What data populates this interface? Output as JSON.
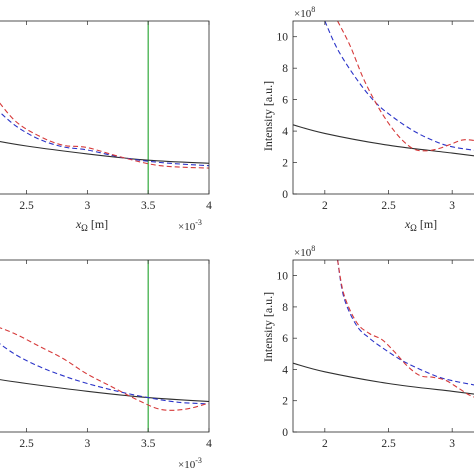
{
  "chart_data": [
    {
      "type": "line",
      "panel": "top-left",
      "xlabel": "x_Ω [m]",
      "x_scale_label": "×10",
      "x_scale_exp": "-3",
      "xlim": [
        2.2,
        4.0
      ],
      "ylim": [
        0,
        11
      ],
      "xticks": [
        2.5,
        3,
        3.5,
        4
      ],
      "xtick_labels": [
        "2.5",
        "3",
        "3.5",
        "4"
      ],
      "vline": {
        "x": 3.5,
        "color": "#1fa22a"
      },
      "series": [
        {
          "color": "#303030",
          "dash": "solid",
          "x": [
            2.2,
            2.5,
            3.0,
            3.5,
            4.0
          ],
          "y": [
            3.45,
            3.05,
            2.55,
            2.15,
            1.95
          ]
        },
        {
          "color": "#2b34c8",
          "dash": "dashed",
          "x": [
            2.2,
            2.4,
            2.6,
            2.8,
            3.0,
            3.3,
            3.6,
            4.0
          ],
          "y": [
            5.8,
            4.4,
            3.5,
            3.0,
            2.8,
            2.3,
            2.0,
            1.8
          ]
        },
        {
          "color": "#d63a3a",
          "dash": "dashed",
          "x": [
            2.2,
            2.4,
            2.6,
            2.8,
            3.0,
            3.3,
            3.6,
            4.0
          ],
          "y": [
            6.6,
            4.7,
            3.7,
            3.1,
            2.95,
            2.3,
            1.8,
            1.65
          ]
        }
      ]
    },
    {
      "type": "line",
      "panel": "top-right",
      "xlabel": "x_Ω [m]",
      "ylabel": "Intensity [a.u.]",
      "y_scale_label": "×10",
      "y_scale_exp": "8",
      "xlim": [
        1.75,
        3.25
      ],
      "ylim": [
        0,
        11
      ],
      "xticks": [
        2,
        2.5,
        3
      ],
      "xtick_labels": [
        "2",
        "2.5",
        "3"
      ],
      "yticks": [
        0,
        2,
        4,
        6,
        8,
        10
      ],
      "ytick_labels": [
        "0",
        "2",
        "4",
        "6",
        "8",
        "10"
      ],
      "series": [
        {
          "color": "#303030",
          "dash": "solid",
          "x": [
            1.75,
            2.0,
            2.5,
            3.0,
            3.25
          ],
          "y": [
            4.4,
            3.85,
            3.1,
            2.6,
            2.35
          ]
        },
        {
          "color": "#2b34c8",
          "dash": "dashed",
          "x": [
            2.0,
            2.1,
            2.25,
            2.4,
            2.55,
            2.7,
            2.85,
            3.0,
            3.25
          ],
          "y": [
            11,
            9.2,
            7.3,
            5.8,
            4.8,
            4.0,
            3.4,
            3.0,
            2.7
          ]
        },
        {
          "color": "#d63a3a",
          "dash": "dashed",
          "x": [
            2.1,
            2.2,
            2.3,
            2.4,
            2.5,
            2.6,
            2.7,
            2.8,
            2.9,
            3.0,
            3.1,
            3.25
          ],
          "y": [
            11,
            9.4,
            7.4,
            5.8,
            4.5,
            3.5,
            2.85,
            2.75,
            2.9,
            3.2,
            3.45,
            3.3
          ]
        }
      ]
    },
    {
      "type": "line",
      "panel": "bottom-left",
      "xlim": [
        2.2,
        4.0
      ],
      "ylim": [
        0,
        11
      ],
      "x_scale_label": "×10",
      "x_scale_exp": "-3",
      "xticks": [
        2.5,
        3,
        3.5,
        4
      ],
      "xtick_labels": [
        "2.5",
        "3",
        "3.5",
        "4"
      ],
      "vline": {
        "x": 3.5,
        "color": "#1fa22a"
      },
      "series": [
        {
          "color": "#303030",
          "dash": "solid",
          "x": [
            2.2,
            2.5,
            3.0,
            3.5,
            4.0
          ],
          "y": [
            3.45,
            3.1,
            2.6,
            2.2,
            1.95
          ]
        },
        {
          "color": "#2b34c8",
          "dash": "dashed",
          "x": [
            2.2,
            2.4,
            2.6,
            2.8,
            3.0,
            3.25,
            3.5,
            3.75,
            4.0
          ],
          "y": [
            6.1,
            5.0,
            4.2,
            3.6,
            3.1,
            2.6,
            2.2,
            1.9,
            1.8
          ]
        },
        {
          "color": "#d63a3a",
          "dash": "dashed",
          "x": [
            2.2,
            2.4,
            2.6,
            2.8,
            3.0,
            3.2,
            3.4,
            3.6,
            3.8,
            4.0
          ],
          "y": [
            6.9,
            6.3,
            5.5,
            4.7,
            3.7,
            2.9,
            2.1,
            1.45,
            1.45,
            1.85
          ]
        }
      ]
    },
    {
      "type": "line",
      "panel": "bottom-right",
      "ylabel": "Intensity [a.u.]",
      "y_scale_label": "×10",
      "y_scale_exp": "8",
      "xlim": [
        1.75,
        3.25
      ],
      "ylim": [
        0,
        11
      ],
      "xticks": [
        2,
        2.5,
        3
      ],
      "xtick_labels": [
        "2",
        "2.5",
        "3"
      ],
      "yticks": [
        0,
        2,
        4,
        6,
        8,
        10
      ],
      "ytick_labels": [
        "0",
        "2",
        "4",
        "6",
        "8",
        "10"
      ],
      "series": [
        {
          "color": "#303030",
          "dash": "solid",
          "x": [
            1.75,
            2.0,
            2.5,
            3.0,
            3.25
          ],
          "y": [
            4.4,
            3.85,
            3.1,
            2.6,
            2.35
          ]
        },
        {
          "color": "#2b34c8",
          "dash": "dashed",
          "x": [
            2.1,
            2.15,
            2.25,
            2.35,
            2.45,
            2.6,
            2.75,
            2.9,
            3.05,
            3.25
          ],
          "y": [
            11,
            8.6,
            6.8,
            6.0,
            5.4,
            4.6,
            4.0,
            3.5,
            3.2,
            2.9
          ]
        },
        {
          "color": "#d63a3a",
          "dash": "dashed",
          "x": [
            2.1,
            2.15,
            2.25,
            2.35,
            2.45,
            2.55,
            2.65,
            2.75,
            2.85,
            2.95,
            3.05,
            3.15,
            3.25
          ],
          "y": [
            11,
            8.8,
            7.0,
            6.3,
            5.9,
            5.1,
            4.2,
            3.6,
            3.5,
            3.3,
            2.8,
            2.3,
            2.1
          ]
        }
      ]
    }
  ]
}
